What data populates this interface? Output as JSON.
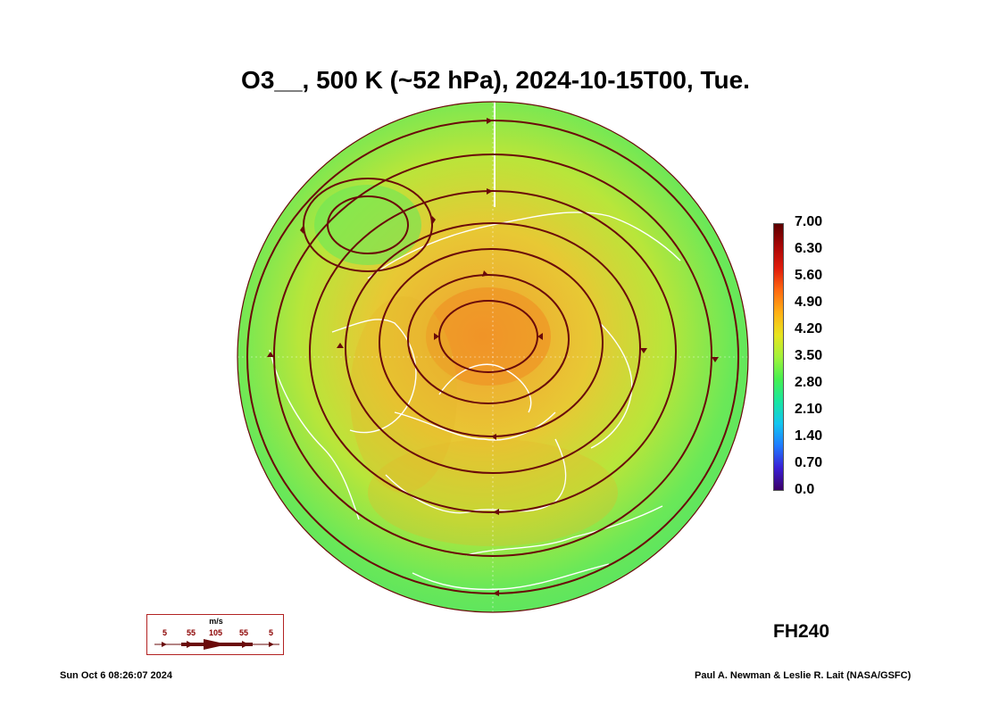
{
  "title": "O3__, 500 K (~52 hPa), 2024-10-15T00, Tue.",
  "forecast_hour": "FH240",
  "timestamp": "Sun Oct  6 08:26:07 2024",
  "credit": "Paul A. Newman & Leslie R. Lait (NASA/GSFC)",
  "colorbar": {
    "labels": [
      "7.00",
      "6.30",
      "5.60",
      "4.90",
      "4.20",
      "3.50",
      "2.80",
      "2.10",
      "1.40",
      "0.70",
      "0.0"
    ],
    "colors": [
      "#3c0068",
      "#3a1fd6",
      "#1f7bff",
      "#12c6f0",
      "#18e6a0",
      "#46f050",
      "#a2f23a",
      "#e8e41e",
      "#ffb014",
      "#ff6a10",
      "#e01c0c",
      "#a80606",
      "#5c0000"
    ]
  },
  "map_colors": {
    "base": "#58e85a",
    "mid": "#a8e83a",
    "high": "#e8b22a",
    "peak": "#f08a20",
    "streamline": "#6a0a0a",
    "coast": "#ffffff"
  },
  "legend": {
    "units": "m/s",
    "values": [
      "5",
      "55",
      "105",
      "55",
      "5"
    ]
  }
}
